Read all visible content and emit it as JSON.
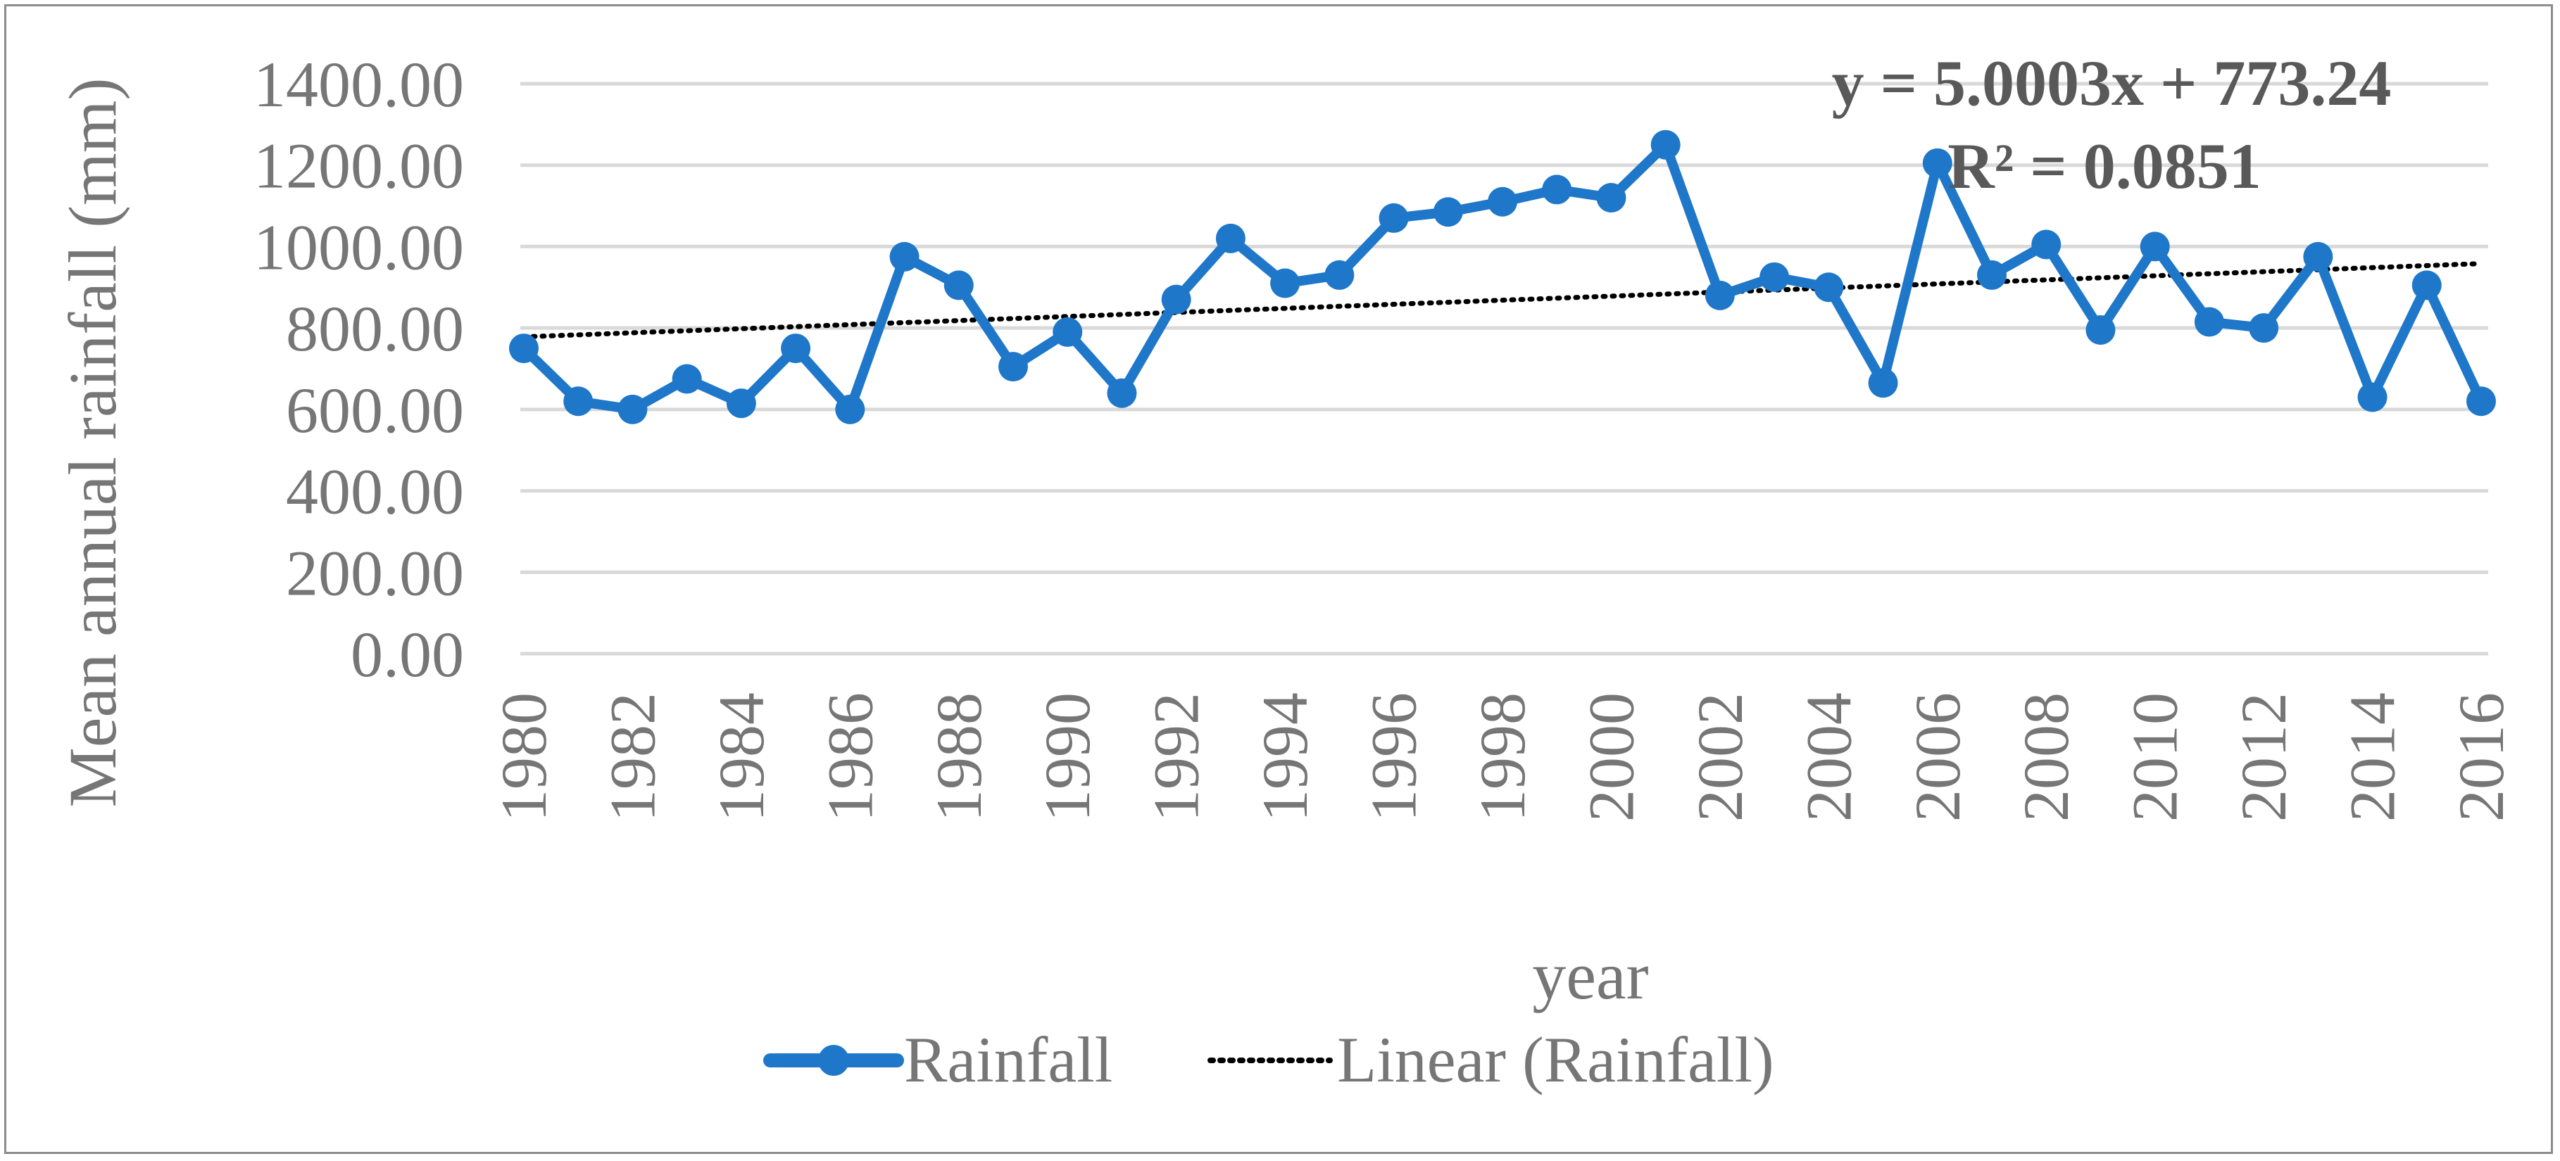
{
  "chart_data": {
    "type": "line",
    "title": "",
    "xlabel": "year",
    "ylabel": "Mean annual rainfall (mm)",
    "ylim": [
      0,
      1400
    ],
    "ytick_step": 200,
    "ytick_labels": [
      "0.00",
      "200.00",
      "400.00",
      "600.00",
      "800.00",
      "1000.00",
      "1200.00",
      "1400.00"
    ],
    "grid": true,
    "x": [
      1980,
      1981,
      1982,
      1983,
      1984,
      1985,
      1986,
      1987,
      1988,
      1989,
      1990,
      1991,
      1992,
      1993,
      1994,
      1995,
      1996,
      1997,
      1998,
      1999,
      2000,
      2001,
      2002,
      2003,
      2004,
      2005,
      2006,
      2007,
      2008,
      2009,
      2010,
      2011,
      2012,
      2013,
      2014,
      2015,
      2016
    ],
    "xtick_labels": [
      "1980",
      "1982",
      "1984",
      "1986",
      "1988",
      "1990",
      "1992",
      "1994",
      "1996",
      "1998",
      "2000",
      "2002",
      "2004",
      "2006",
      "2008",
      "2010",
      "2012",
      "2014",
      "2016"
    ],
    "series": [
      {
        "name": "Rainfall",
        "color": "#1f77c9",
        "values": [
          750,
          620,
          600,
          675,
          615,
          750,
          600,
          975,
          905,
          705,
          790,
          640,
          870,
          1020,
          910,
          930,
          1070,
          1085,
          1110,
          1140,
          1120,
          1250,
          880,
          925,
          900,
          665,
          1205,
          930,
          1005,
          795,
          1000,
          815,
          800,
          975,
          630,
          905,
          620
        ]
      }
    ],
    "trendline": {
      "name": "Linear (Rainfall)",
      "color": "#000000",
      "slope": 5.0003,
      "intercept": 773.24,
      "equation": "y = 5.0003x + 773.24",
      "r_squared": "R² = 0.0851"
    },
    "legend": {
      "placement": "bottom",
      "entries": [
        "Rainfall",
        "Linear (Rainfall)"
      ]
    }
  }
}
